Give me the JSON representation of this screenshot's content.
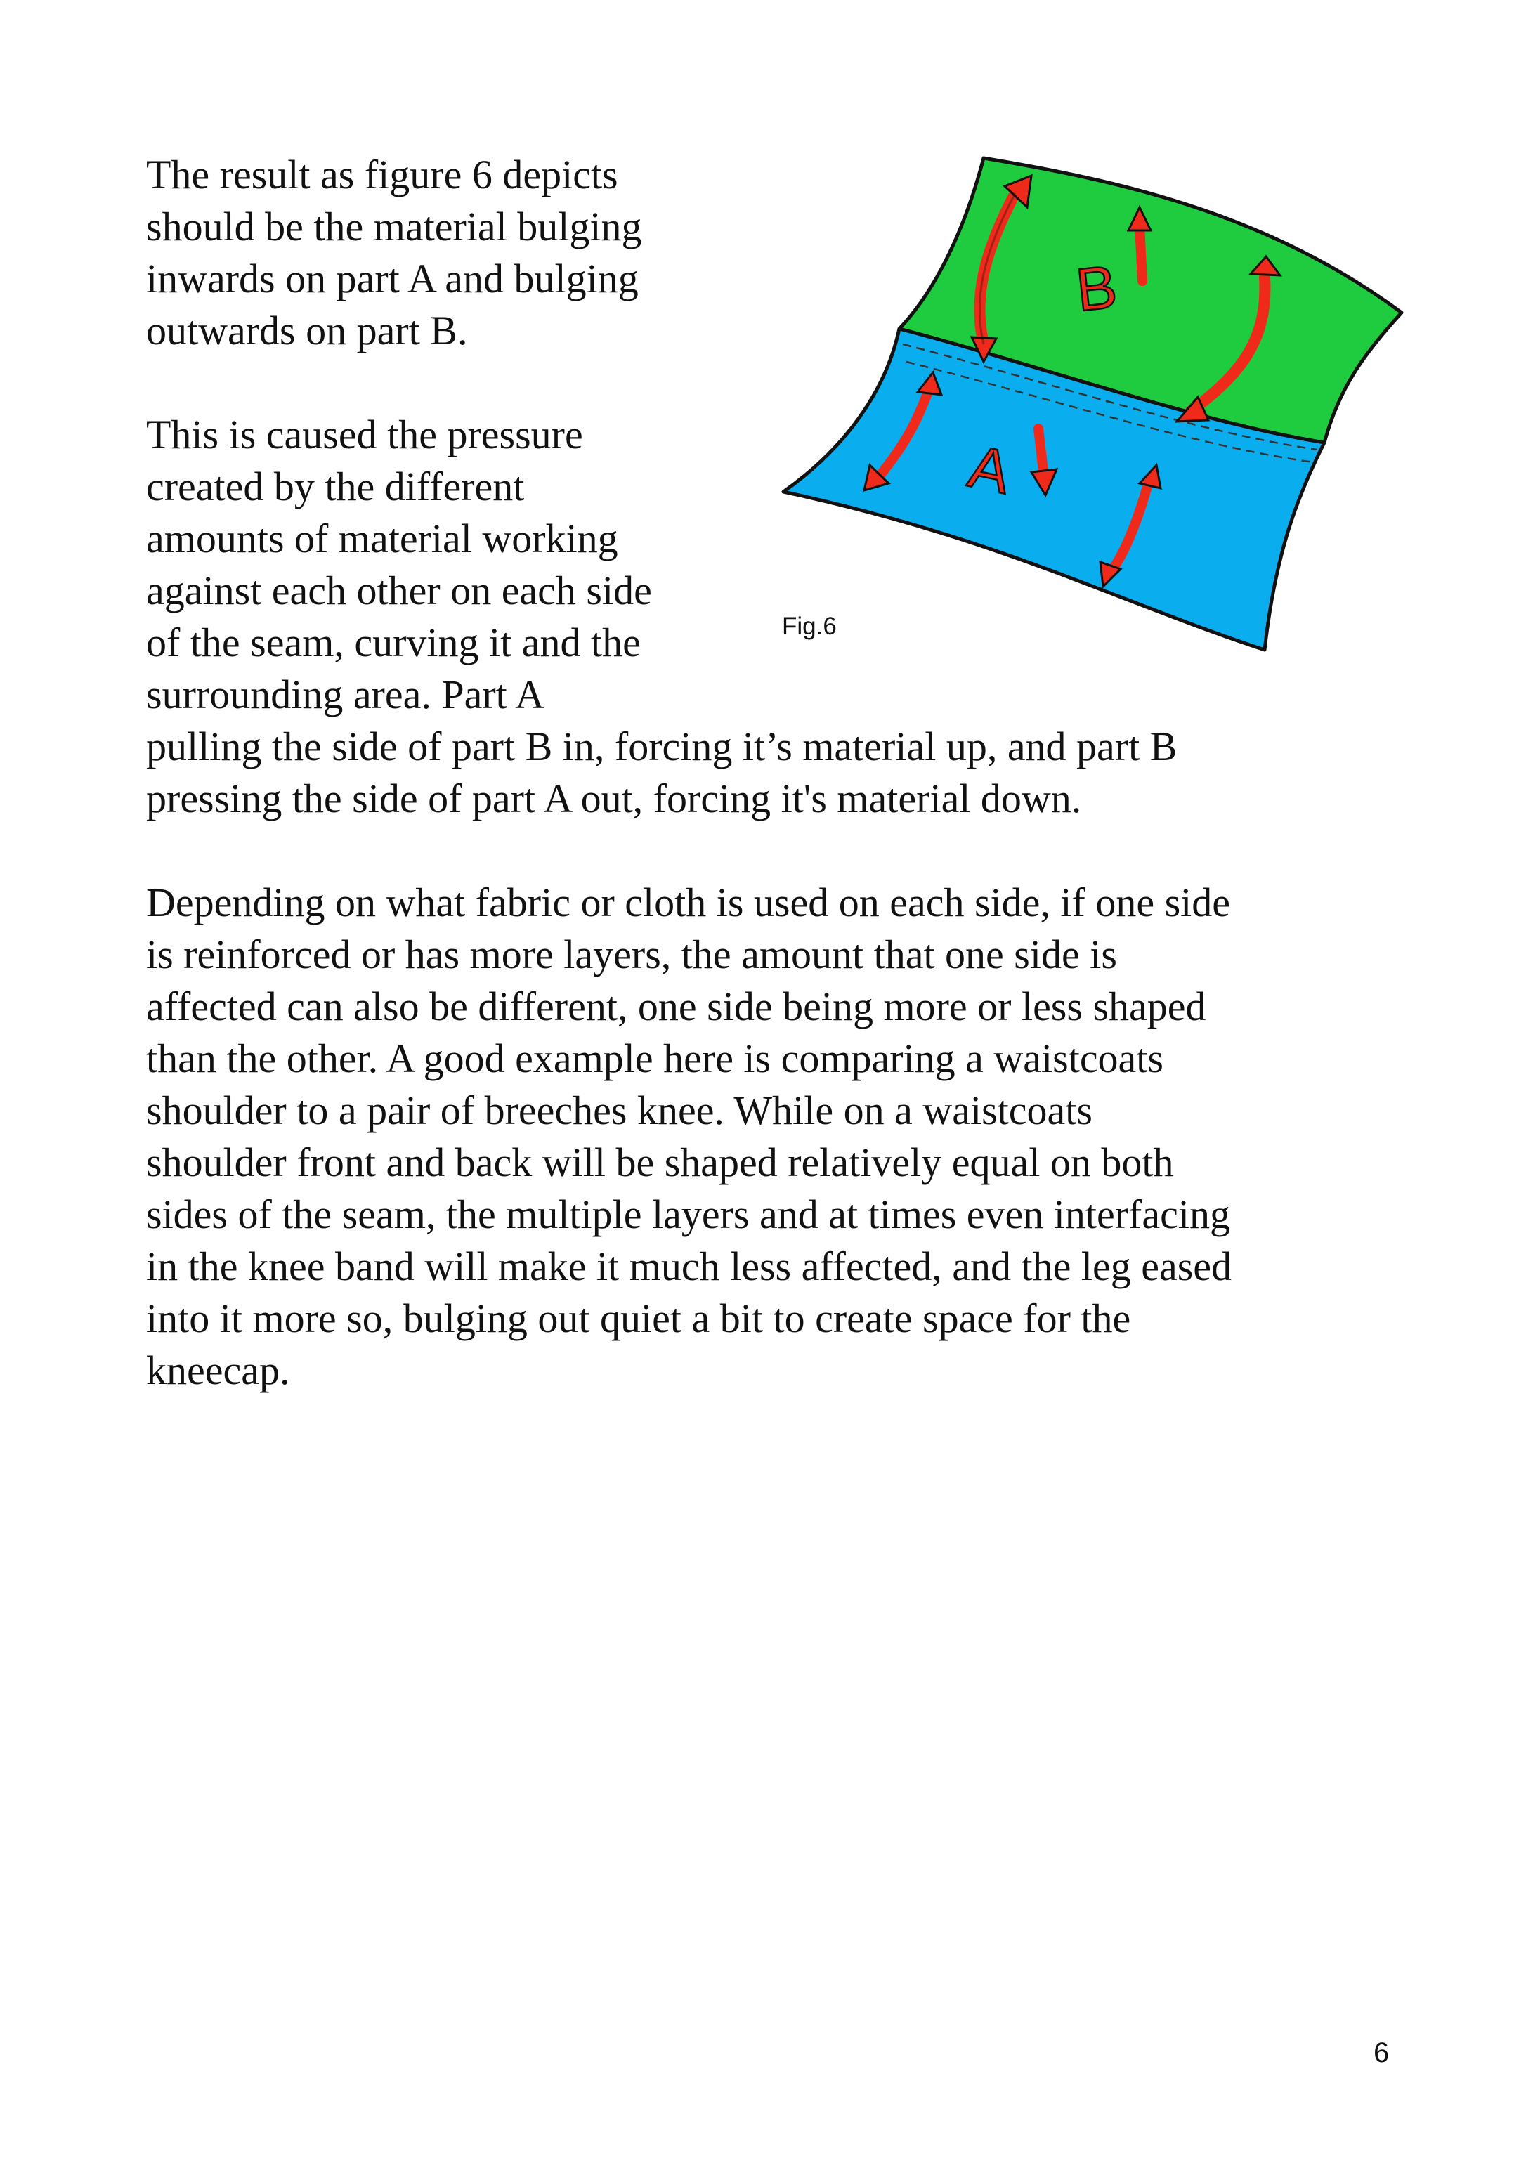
{
  "paragraphs": {
    "p1_lines": [
      "The result as figure 6 depicts",
      "should be the material bulging",
      "inwards on part A and bulging",
      "outwards on part B.",
      "",
      "This is caused the pressure",
      "created by the different",
      "amounts of material working",
      "against each other on each side",
      "of the seam, curving it and the",
      "surrounding area. Part A",
      "pulling the side of part B in, forcing it’s material up, and part B",
      "pressing the side of part A out, forcing it's material down."
    ],
    "p3_lines": [
      "Depending on what fabric or cloth is used on each side, if one side",
      "is reinforced or has more layers, the amount that one side is",
      "affected can also be different, one side being more or less shaped",
      "than the other. A good example here is comparing a waistcoats",
      "shoulder to a pair of breeches knee. While on a waistcoats",
      "shoulder front and back will be shaped relatively equal on both",
      "sides of the seam, the multiple layers and at times even interfacing",
      "in the knee band will make it much less affected, and the leg eased",
      "into it more so, bulging out quiet a bit to create space for the",
      "kneecap."
    ]
  },
  "figure": {
    "caption": "Fig.6",
    "label_a": "A",
    "label_b": "B",
    "colors": {
      "part_b": "#1fcc3f",
      "part_a": "#0aaeef",
      "arrows": "#f02a1a",
      "outline": "#111111"
    }
  },
  "page_number": "6"
}
